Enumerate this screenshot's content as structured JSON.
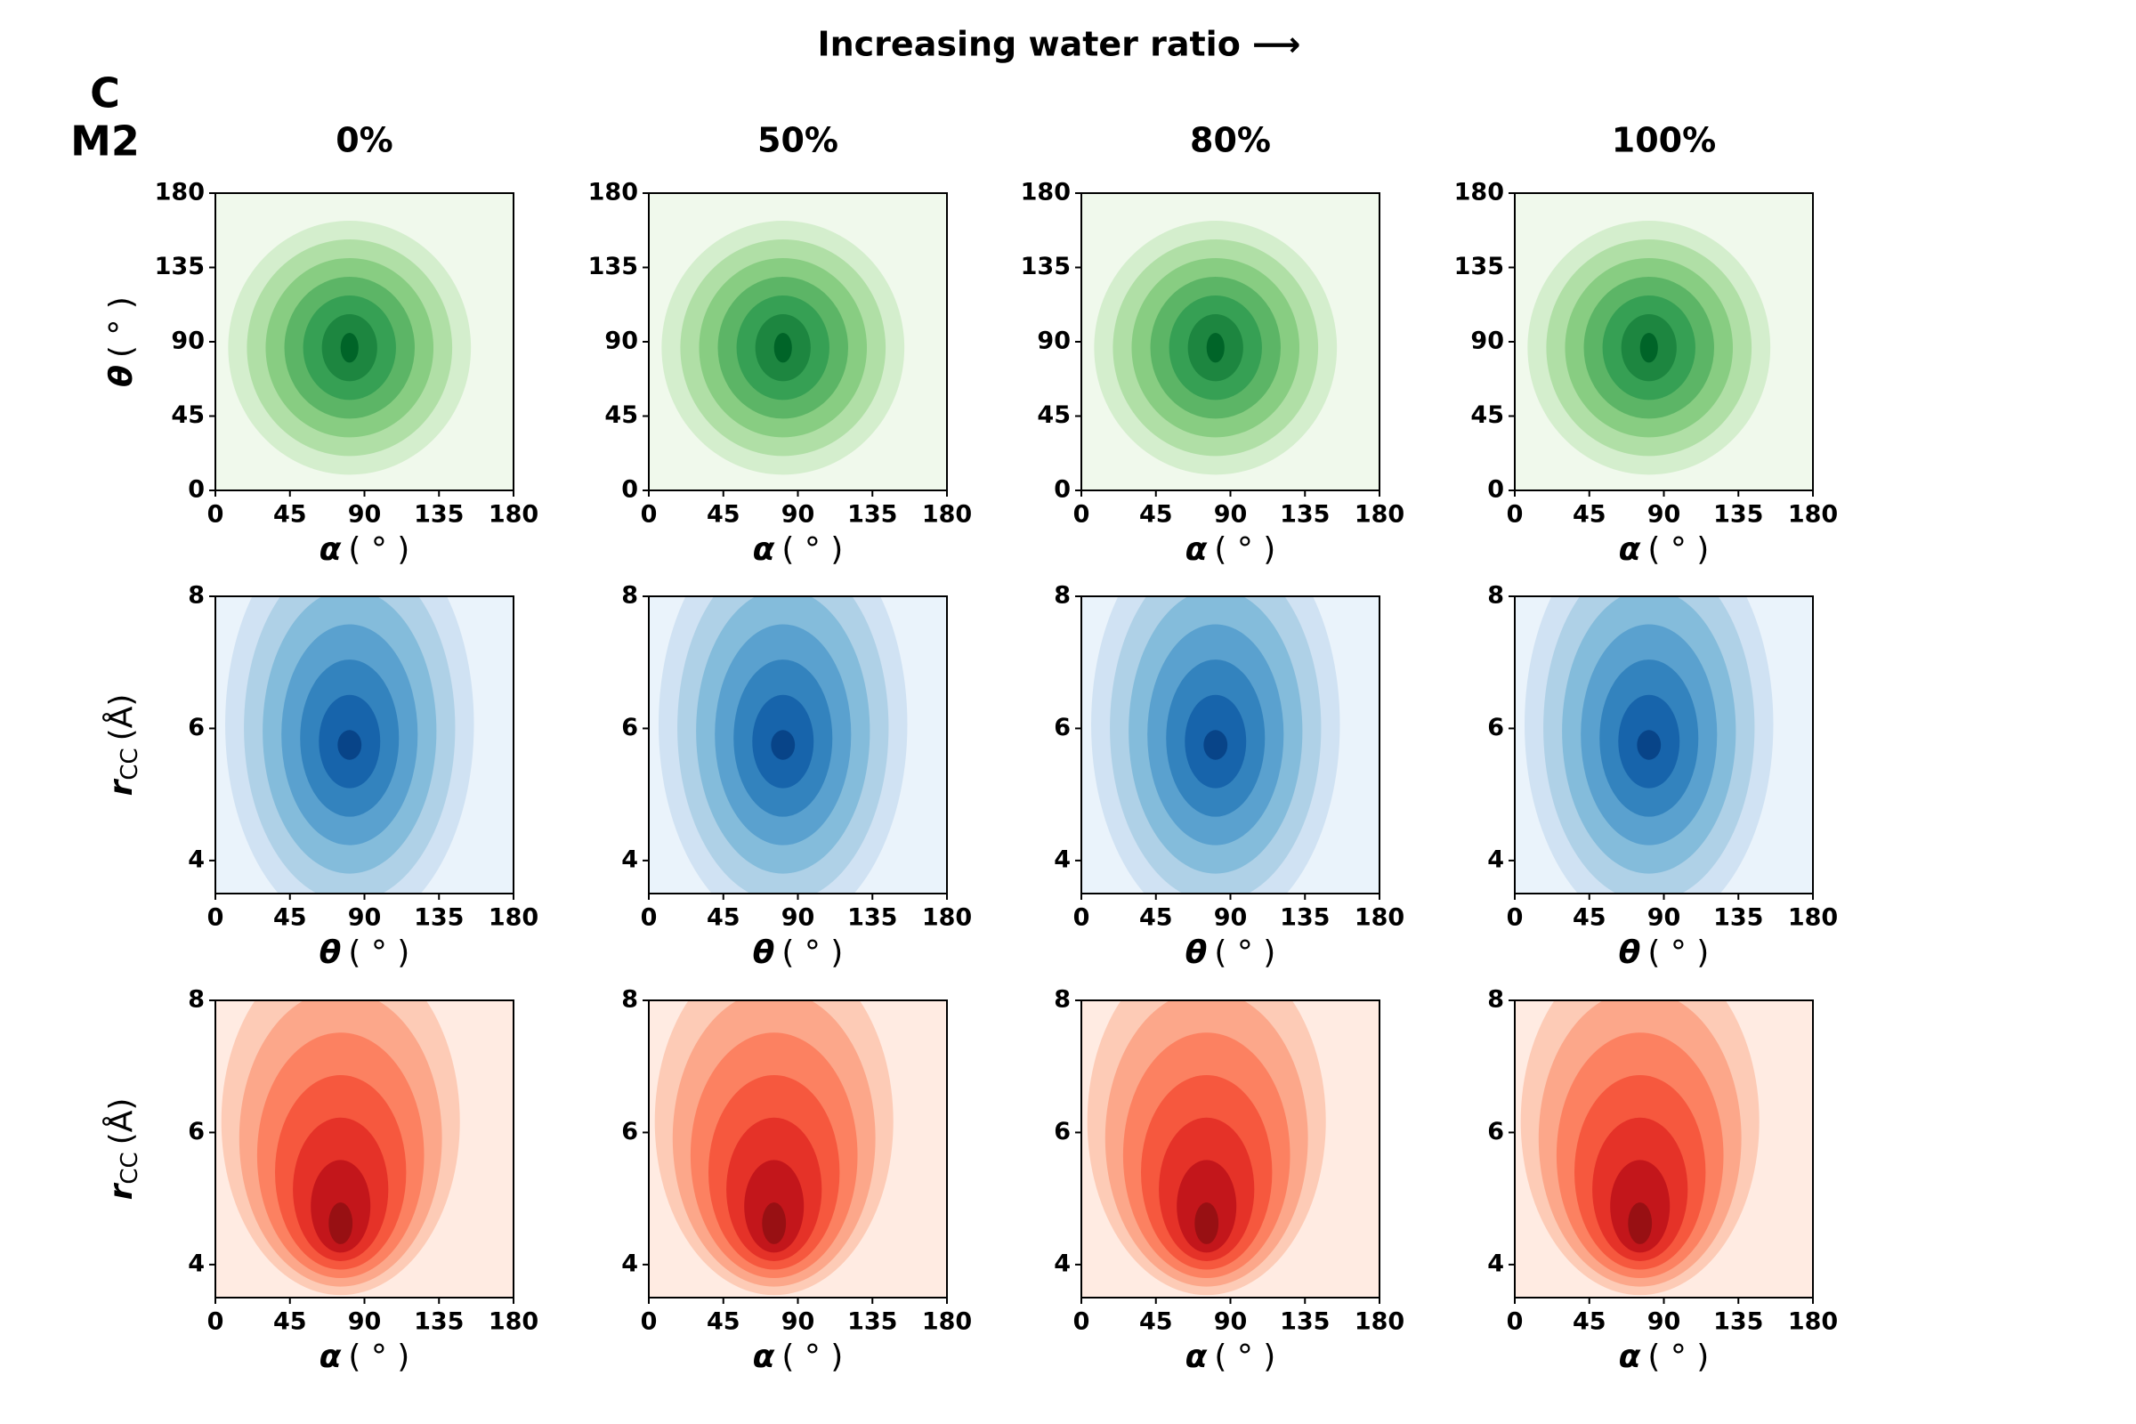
{
  "figure": {
    "title": "Increasing water ratio ⟶",
    "panel": "C",
    "model": "M2"
  },
  "chart_data": [
    {
      "type": "contour",
      "title": "0%",
      "xlabel": {
        "symbol": "α",
        "unit": "( ° )"
      },
      "ylabel": {
        "symbol": "θ",
        "unit": "( ° )"
      },
      "xlim": [
        0,
        180
      ],
      "ylim": [
        0,
        180
      ],
      "xticks": [
        0,
        45,
        90,
        135,
        180
      ],
      "yticks": [
        0,
        45,
        90,
        135,
        180
      ],
      "colors": [
        "#f0f9ec",
        "#d4eecd",
        "#b0dfa6",
        "#88cd82",
        "#5cb566",
        "#36a054",
        "#1d8640",
        "#006428"
      ]
    },
    {
      "type": "contour",
      "title": "50%",
      "xlabel": {
        "symbol": "α",
        "unit": "( ° )"
      },
      "xlim": [
        0,
        180
      ],
      "ylim": [
        0,
        180
      ],
      "xticks": [
        0,
        45,
        90,
        135,
        180
      ],
      "yticks": [
        0,
        45,
        90,
        135,
        180
      ],
      "colors": [
        "#f0f9ec",
        "#d4eecd",
        "#b0dfa6",
        "#88cd82",
        "#5cb566",
        "#36a054",
        "#1d8640",
        "#006428"
      ]
    },
    {
      "type": "contour",
      "title": "80%",
      "xlabel": {
        "symbol": "α",
        "unit": "( ° )"
      },
      "xlim": [
        0,
        180
      ],
      "ylim": [
        0,
        180
      ],
      "xticks": [
        0,
        45,
        90,
        135,
        180
      ],
      "yticks": [
        0,
        45,
        90,
        135,
        180
      ],
      "colors": [
        "#f0f9ec",
        "#d4eecd",
        "#b0dfa6",
        "#88cd82",
        "#5cb566",
        "#36a054",
        "#1d8640",
        "#006428"
      ]
    },
    {
      "type": "contour",
      "title": "100%",
      "xlabel": {
        "symbol": "α",
        "unit": "( ° )"
      },
      "xlim": [
        0,
        180
      ],
      "ylim": [
        0,
        180
      ],
      "xticks": [
        0,
        45,
        90,
        135,
        180
      ],
      "yticks": [
        0,
        45,
        90,
        135,
        180
      ],
      "colors": [
        "#f0f9ec",
        "#d4eecd",
        "#b0dfa6",
        "#88cd82",
        "#5cb566",
        "#36a054",
        "#1d8640",
        "#006428"
      ]
    },
    {
      "type": "contour",
      "xlabel": {
        "symbol": "θ",
        "unit": "( ° )"
      },
      "ylabel": {
        "symbol": "r",
        "sub": "CC",
        "unit": "(Å)"
      },
      "xlim": [
        0,
        180
      ],
      "ylim": [
        3.5,
        8
      ],
      "xticks": [
        0,
        45,
        90,
        135,
        180
      ],
      "yticks": [
        4,
        6,
        8
      ],
      "colors": [
        "#eaf3fb",
        "#d0e2f3",
        "#afd1e7",
        "#84bcdb",
        "#5aa1cf",
        "#3383be",
        "#1764ab",
        "#084488"
      ]
    },
    {
      "type": "contour",
      "xlabel": {
        "symbol": "θ",
        "unit": "( ° )"
      },
      "xlim": [
        0,
        180
      ],
      "ylim": [
        3.5,
        8
      ],
      "xticks": [
        0,
        45,
        90,
        135,
        180
      ],
      "yticks": [
        4,
        6,
        8
      ],
      "colors": [
        "#eaf3fb",
        "#d0e2f3",
        "#afd1e7",
        "#84bcdb",
        "#5aa1cf",
        "#3383be",
        "#1764ab",
        "#084488"
      ]
    },
    {
      "type": "contour",
      "xlabel": {
        "symbol": "θ",
        "unit": "( ° )"
      },
      "xlim": [
        0,
        180
      ],
      "ylim": [
        3.5,
        8
      ],
      "xticks": [
        0,
        45,
        90,
        135,
        180
      ],
      "yticks": [
        4,
        6,
        8
      ],
      "colors": [
        "#eaf3fb",
        "#d0e2f3",
        "#afd1e7",
        "#84bcdb",
        "#5aa1cf",
        "#3383be",
        "#1764ab",
        "#084488"
      ]
    },
    {
      "type": "contour",
      "xlabel": {
        "symbol": "θ",
        "unit": "( ° )"
      },
      "xlim": [
        0,
        180
      ],
      "ylim": [
        3.5,
        8
      ],
      "xticks": [
        0,
        45,
        90,
        135,
        180
      ],
      "yticks": [
        4,
        6,
        8
      ],
      "colors": [
        "#eaf3fb",
        "#d0e2f3",
        "#afd1e7",
        "#84bcdb",
        "#5aa1cf",
        "#3383be",
        "#1764ab",
        "#084488"
      ]
    },
    {
      "type": "contour",
      "xlabel": {
        "symbol": "α",
        "unit": "( ° )"
      },
      "ylabel": {
        "symbol": "r",
        "sub": "CC",
        "unit": "(Å)"
      },
      "xlim": [
        0,
        180
      ],
      "ylim": [
        3.5,
        8
      ],
      "xticks": [
        0,
        45,
        90,
        135,
        180
      ],
      "yticks": [
        4,
        6,
        8
      ],
      "colors": [
        "#ffebe2",
        "#fdcbb6",
        "#fca78a",
        "#fc8161",
        "#f6583e",
        "#e53228",
        "#c3161b",
        "#981013"
      ]
    },
    {
      "type": "contour",
      "xlabel": {
        "symbol": "α",
        "unit": "( ° )"
      },
      "xlim": [
        0,
        180
      ],
      "ylim": [
        3.5,
        8
      ],
      "xticks": [
        0,
        45,
        90,
        135,
        180
      ],
      "yticks": [
        4,
        6,
        8
      ],
      "colors": [
        "#ffebe2",
        "#fdcbb6",
        "#fca78a",
        "#fc8161",
        "#f6583e",
        "#e53228",
        "#c3161b",
        "#981013"
      ]
    },
    {
      "type": "contour",
      "xlabel": {
        "symbol": "α",
        "unit": "( ° )"
      },
      "xlim": [
        0,
        180
      ],
      "ylim": [
        3.5,
        8
      ],
      "xticks": [
        0,
        45,
        90,
        135,
        180
      ],
      "yticks": [
        4,
        6,
        8
      ],
      "colors": [
        "#ffebe2",
        "#fdcbb6",
        "#fca78a",
        "#fc8161",
        "#f6583e",
        "#e53228",
        "#c3161b",
        "#981013"
      ]
    },
    {
      "type": "contour",
      "xlabel": {
        "symbol": "α",
        "unit": "( ° )"
      },
      "xlim": [
        0,
        180
      ],
      "ylim": [
        3.5,
        8
      ],
      "xticks": [
        0,
        45,
        90,
        135,
        180
      ],
      "yticks": [
        4,
        6,
        8
      ],
      "colors": [
        "#ffebe2",
        "#fdcbb6",
        "#fca78a",
        "#fc8161",
        "#f6583e",
        "#e53228",
        "#c3161b",
        "#981013"
      ]
    }
  ]
}
